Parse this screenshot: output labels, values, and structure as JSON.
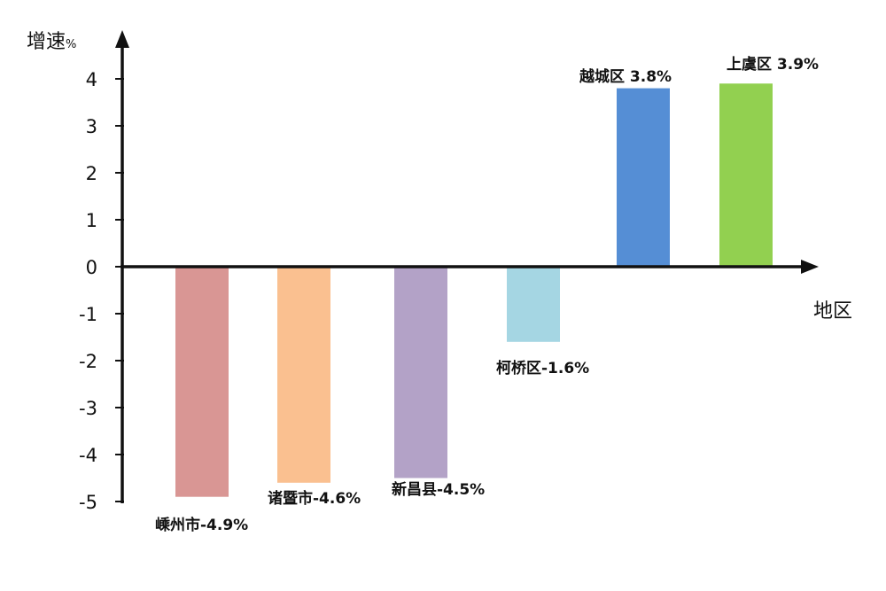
{
  "chart_data": {
    "type": "bar",
    "title": "",
    "ylabel": "增速",
    "ylabel_unit": "%",
    "xlabel": "地区",
    "ylim": [
      -5,
      4
    ],
    "yticks": [
      4,
      3,
      2,
      1,
      0,
      -1,
      -2,
      -3,
      -4,
      -5
    ],
    "ytick_labels": [
      "4",
      "3",
      "2",
      "1",
      "0",
      "-1",
      "-2",
      "-3",
      "-4",
      "-5"
    ],
    "categories": [
      "嵊州市",
      "诸暨市",
      "新昌县",
      "柯桥区",
      "越城区",
      "上虞区"
    ],
    "values": [
      -4.9,
      -4.6,
      -4.5,
      -1.6,
      3.8,
      3.9
    ],
    "data_labels": [
      "嵊州市-4.9%",
      "诸暨市-4.6%",
      "新昌县-4.5%",
      "柯桥区-1.6%",
      "越城区 3.8%",
      "上虞区 3.9%"
    ],
    "colors": [
      "#d99694",
      "#fac090",
      "#b3a2c7",
      "#a5d6e3",
      "#558ed5",
      "#92d050"
    ],
    "grid": false,
    "legend": "none"
  }
}
